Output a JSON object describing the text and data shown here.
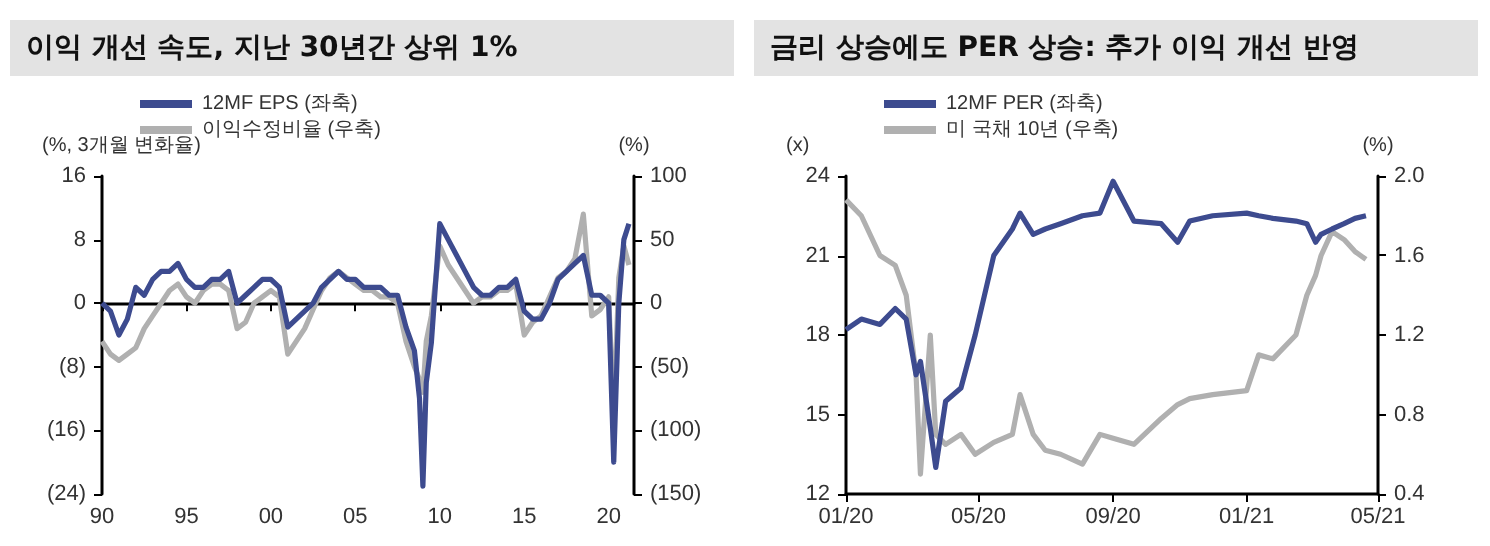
{
  "chart_data": [
    {
      "type": "line",
      "title": "이익 개선 속도, 지난 30년간 상위 1%",
      "ylabel": "(%, 3개월 변화율)",
      "y2label": "(%)",
      "x": [
        1990,
        1990.5,
        1991,
        1991.5,
        1992,
        1992.5,
        1993,
        1993.5,
        1994,
        1994.5,
        1995,
        1995.5,
        1996,
        1996.5,
        1997,
        1997.5,
        1998,
        1998.5,
        1999,
        1999.5,
        2000,
        2000.5,
        2001,
        2001.5,
        2002,
        2002.5,
        2003,
        2003.5,
        2004,
        2004.5,
        2005,
        2005.5,
        2006,
        2006.5,
        2007,
        2007.5,
        2008,
        2008.5,
        2008.8,
        2009,
        2009.2,
        2009.5,
        2010,
        2010.5,
        2011,
        2011.5,
        2012,
        2012.5,
        2013,
        2013.5,
        2014,
        2014.5,
        2015,
        2015.5,
        2016,
        2016.5,
        2017,
        2017.5,
        2018,
        2018.5,
        2019,
        2019.5,
        2020,
        2020.3,
        2020.6,
        2020.9,
        2021.2
      ],
      "series": [
        {
          "name": "12MF EPS (좌축)",
          "color": "#3d4b8f",
          "values": [
            0,
            -1,
            -4,
            -2,
            2,
            1,
            3,
            4,
            4,
            5,
            3,
            2,
            2,
            3,
            3,
            4,
            0,
            1,
            2,
            3,
            3,
            2,
            -3,
            -2,
            -1,
            0,
            2,
            3,
            4,
            3,
            3,
            2,
            2,
            2,
            1,
            1,
            -3,
            -6,
            -12,
            -23,
            -10,
            -5,
            10,
            8,
            6,
            4,
            2,
            1,
            1,
            2,
            2,
            3,
            -1,
            -2,
            -2,
            0,
            3,
            4,
            5,
            6,
            1,
            1,
            0,
            -20,
            0,
            8,
            10
          ],
          "axis": "y"
        },
        {
          "name": "이익수정비율 (우축)",
          "color": "#b0b0b0",
          "values": [
            -30,
            -40,
            -45,
            -40,
            -35,
            -20,
            -10,
            0,
            10,
            15,
            5,
            0,
            10,
            15,
            15,
            10,
            -20,
            -15,
            0,
            5,
            10,
            5,
            -40,
            -30,
            -20,
            -5,
            10,
            20,
            25,
            20,
            15,
            10,
            10,
            5,
            5,
            0,
            -30,
            -50,
            -60,
            -70,
            -30,
            -10,
            45,
            30,
            20,
            10,
            0,
            5,
            5,
            10,
            10,
            15,
            -25,
            -15,
            -10,
            5,
            20,
            25,
            35,
            70,
            -10,
            -5,
            5,
            -90,
            20,
            45,
            30
          ],
          "axis": "y2"
        }
      ],
      "xlim": [
        1990,
        2021.5
      ],
      "xticks": [
        {
          "value": 1990,
          "label": "90"
        },
        {
          "value": 1995,
          "label": "95"
        },
        {
          "value": 2000,
          "label": "00"
        },
        {
          "value": 2005,
          "label": "05"
        },
        {
          "value": 2010,
          "label": "10"
        },
        {
          "value": 2015,
          "label": "15"
        },
        {
          "value": 2020,
          "label": "20"
        }
      ],
      "ylim": [
        -24,
        16
      ],
      "yticks": [
        {
          "value": -24,
          "label": "(24)"
        },
        {
          "value": -16,
          "label": "(16)"
        },
        {
          "value": -8,
          "label": "(8)"
        },
        0,
        8,
        16
      ],
      "y2lim": [
        -150,
        100
      ],
      "y2ticks": [
        {
          "value": -150,
          "label": "(150)"
        },
        {
          "value": -100,
          "label": "(100)"
        },
        {
          "value": -50,
          "label": "(50)"
        },
        0,
        50,
        100
      ],
      "legend": "top left"
    },
    {
      "type": "line",
      "title": "금리 상승에도 PER 상승: 추가 이익 개선 반영",
      "ylabel": "(x)",
      "y2label": "(%)",
      "x": [
        "2020-01-01",
        "2020-01-15",
        "2020-02-01",
        "2020-02-15",
        "2020-02-25",
        "2020-03-05",
        "2020-03-09",
        "2020-03-18",
        "2020-03-23",
        "2020-04-01",
        "2020-04-15",
        "2020-04-28",
        "2020-05-15",
        "2020-06-01",
        "2020-06-08",
        "2020-06-20",
        "2020-07-01",
        "2020-07-15",
        "2020-08-04",
        "2020-08-20",
        "2020-09-01",
        "2020-09-20",
        "2020-10-15",
        "2020-10-30",
        "2020-11-10",
        "2020-12-01",
        "2021-01-01",
        "2021-01-12",
        "2021-01-25",
        "2021-02-15",
        "2021-02-25",
        "2021-03-05",
        "2021-03-10",
        "2021-03-20",
        "2021-03-31",
        "2021-04-10",
        "2021-04-20"
      ],
      "series": [
        {
          "name": "12MF PER (좌축)",
          "color": "#3d4b8f",
          "values": [
            18.2,
            18.6,
            18.4,
            19.0,
            18.6,
            16.5,
            17.0,
            14.5,
            13.0,
            15.5,
            16.0,
            18.0,
            21.0,
            22.0,
            22.6,
            21.8,
            22.0,
            22.2,
            22.5,
            22.6,
            23.8,
            22.3,
            22.2,
            21.5,
            22.3,
            22.5,
            22.6,
            22.5,
            22.4,
            22.3,
            22.2,
            21.5,
            21.8,
            22.0,
            22.2,
            22.4,
            22.5
          ],
          "axis": "y"
        },
        {
          "name": "미 국채 10년 (우축)",
          "color": "#b0b0b0",
          "values": [
            1.88,
            1.8,
            1.6,
            1.55,
            1.4,
            1.0,
            0.5,
            1.2,
            0.7,
            0.65,
            0.7,
            0.6,
            0.66,
            0.7,
            0.9,
            0.7,
            0.62,
            0.6,
            0.55,
            0.7,
            0.68,
            0.65,
            0.78,
            0.85,
            0.88,
            0.9,
            0.92,
            1.1,
            1.08,
            1.2,
            1.4,
            1.5,
            1.6,
            1.72,
            1.68,
            1.62,
            1.58
          ],
          "axis": "y2"
        }
      ],
      "xlim": [
        "2020-01-01",
        "2021-05-01"
      ],
      "xticks": [
        {
          "value": "2020-01-01",
          "label": "01/20"
        },
        {
          "value": "2020-05-01",
          "label": "05/20"
        },
        {
          "value": "2020-09-01",
          "label": "09/20"
        },
        {
          "value": "2021-01-01",
          "label": "01/21"
        },
        {
          "value": "2021-05-01",
          "label": "05/21"
        }
      ],
      "ylim": [
        12,
        24
      ],
      "yticks": [
        12,
        15,
        18,
        21,
        24
      ],
      "y2lim": [
        0.4,
        2.0
      ],
      "y2ticks": [
        {
          "value": 0.4,
          "label": "0.4"
        },
        {
          "value": 0.8,
          "label": "0.8"
        },
        {
          "value": 1.2,
          "label": "1.2"
        },
        {
          "value": 1.6,
          "label": "1.6"
        },
        {
          "value": 2.0,
          "label": "2.0"
        }
      ],
      "legend": "top left"
    }
  ]
}
